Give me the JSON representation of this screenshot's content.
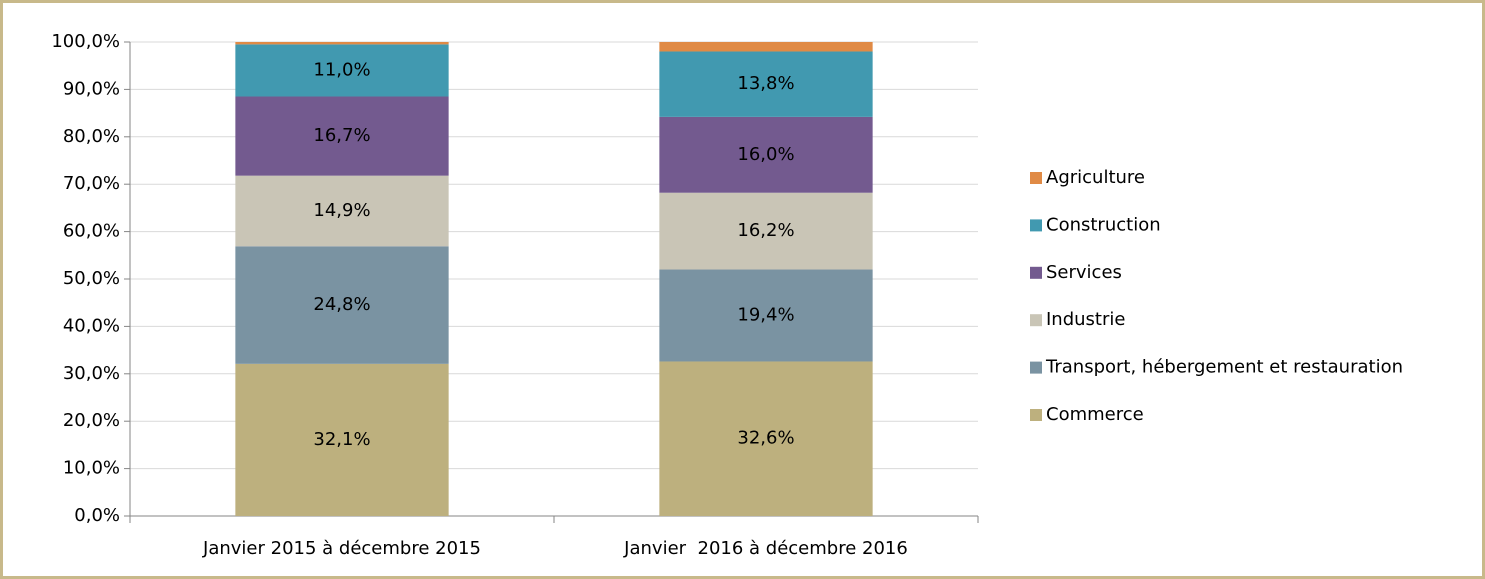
{
  "chart_data": {
    "type": "stacked_bar",
    "categories": [
      "Janvier 2015 à décembre 2015",
      "Janvier  2016 à décembre 2016"
    ],
    "series": [
      {
        "name": "Commerce",
        "color": "#bdb07e",
        "values": [
          32.1,
          32.6
        ],
        "value_labels": [
          "32,1%",
          "32,6%"
        ]
      },
      {
        "name": "Transport, hébergement et restauration",
        "color": "#7a93a2",
        "values": [
          24.8,
          19.4
        ],
        "value_labels": [
          "24,8%",
          "19,4%"
        ]
      },
      {
        "name": "Industrie",
        "color": "#c9c5b6",
        "values": [
          14.9,
          16.2
        ],
        "value_labels": [
          "14,9%",
          "16,2%"
        ]
      },
      {
        "name": "Services",
        "color": "#735a8f",
        "values": [
          16.7,
          16.0
        ],
        "value_labels": [
          "16,7%",
          "16,0%"
        ]
      },
      {
        "name": "Construction",
        "color": "#4199b0",
        "values": [
          11.0,
          13.8
        ],
        "value_labels": [
          "11,0%",
          "13,8%"
        ]
      },
      {
        "name": "Agriculture",
        "color": "#e08a45",
        "values": [
          0.5,
          2.0
        ]
      }
    ],
    "ylim": [
      0,
      100
    ],
    "yticks": [
      {
        "value": 0,
        "label": "0,0%"
      },
      {
        "value": 10,
        "label": "10,0%"
      },
      {
        "value": 20,
        "label": "20,0%"
      },
      {
        "value": 30,
        "label": "30,0%"
      },
      {
        "value": 40,
        "label": "40,0%"
      },
      {
        "value": 50,
        "label": "50,0%"
      },
      {
        "value": 60,
        "label": "60,0%"
      },
      {
        "value": 70,
        "label": "70,0%"
      },
      {
        "value": 80,
        "label": "80,0%"
      },
      {
        "value": 90,
        "label": "90,0%"
      },
      {
        "value": 100,
        "label": "100,0%"
      }
    ],
    "grid": true,
    "legend": "right"
  }
}
